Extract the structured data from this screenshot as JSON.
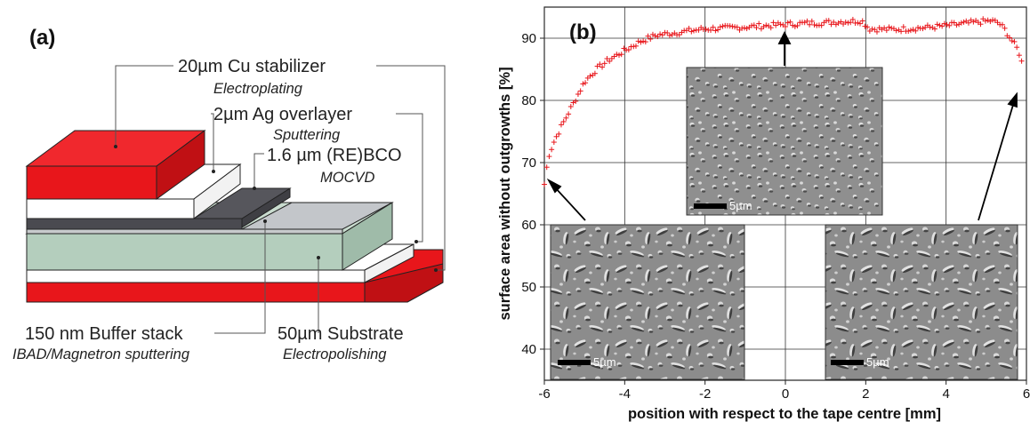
{
  "panel_a": {
    "label": "(a)",
    "layers": {
      "cu": {
        "title": "20µm Cu stabilizer",
        "method": "Electroplating"
      },
      "ag": {
        "title": "2µm Ag overlayer",
        "method": "Sputtering"
      },
      "rebco": {
        "title": "1.6 µm (RE)BCO",
        "method": "MOCVD"
      },
      "buffer": {
        "title": "150 nm Buffer stack",
        "method": "IBAD/Magnetron sputtering"
      },
      "substrate": {
        "title": "50µm Substrate",
        "method": "Electropolishing"
      }
    },
    "colors": {
      "cu": "#e8161b",
      "ag": "#ffffff",
      "rebco": "#56565c",
      "buffer": "#b9bcc0",
      "substrate": "#b4cebd"
    }
  },
  "panel_b": {
    "label": "(b)",
    "scale_bar_label": "5µm",
    "insets": [
      {
        "name": "edge-left",
        "caption": "5µm"
      },
      {
        "name": "centre",
        "caption": "5µm"
      },
      {
        "name": "edge-right",
        "caption": "5µm"
      }
    ]
  },
  "chart_data": {
    "type": "scatter",
    "title": "",
    "xlabel": "position with respect to the tape centre [mm]",
    "ylabel": "surface area without outgrowths [%]",
    "xlim": [
      -6,
      6
    ],
    "ylim": [
      35,
      95
    ],
    "xticks": [
      -6,
      -4,
      -2,
      0,
      2,
      4,
      6
    ],
    "yticks": [
      40,
      50,
      60,
      70,
      80,
      90
    ],
    "grid": true,
    "marker": "+",
    "color": "#e8161b",
    "profile": {
      "x": [
        -6.0,
        -5.9,
        -5.75,
        -5.6,
        -5.4,
        -5.2,
        -5.0,
        -4.7,
        -4.4,
        -4.0,
        -3.6,
        -3.2,
        -2.6,
        -2.0,
        -1.5,
        -1.0,
        -0.5,
        0.0,
        0.5,
        1.0,
        1.5,
        1.9,
        2.1,
        2.6,
        3.0,
        3.5,
        4.0,
        4.4,
        4.8,
        5.1,
        5.3,
        5.45,
        5.6,
        5.7,
        5.8,
        5.87,
        5.93
      ],
      "y": [
        66.5,
        71.0,
        73.5,
        75.5,
        78.0,
        80.5,
        83.0,
        85.0,
        86.5,
        88.0,
        89.5,
        90.5,
        91.0,
        91.5,
        91.6,
        91.8,
        92.0,
        92.2,
        92.4,
        92.5,
        92.7,
        92.8,
        91.5,
        91.4,
        91.5,
        91.7,
        92.0,
        92.3,
        92.6,
        92.8,
        92.5,
        91.5,
        90.0,
        89.0,
        88.0,
        86.5,
        84.5
      ]
    }
  }
}
